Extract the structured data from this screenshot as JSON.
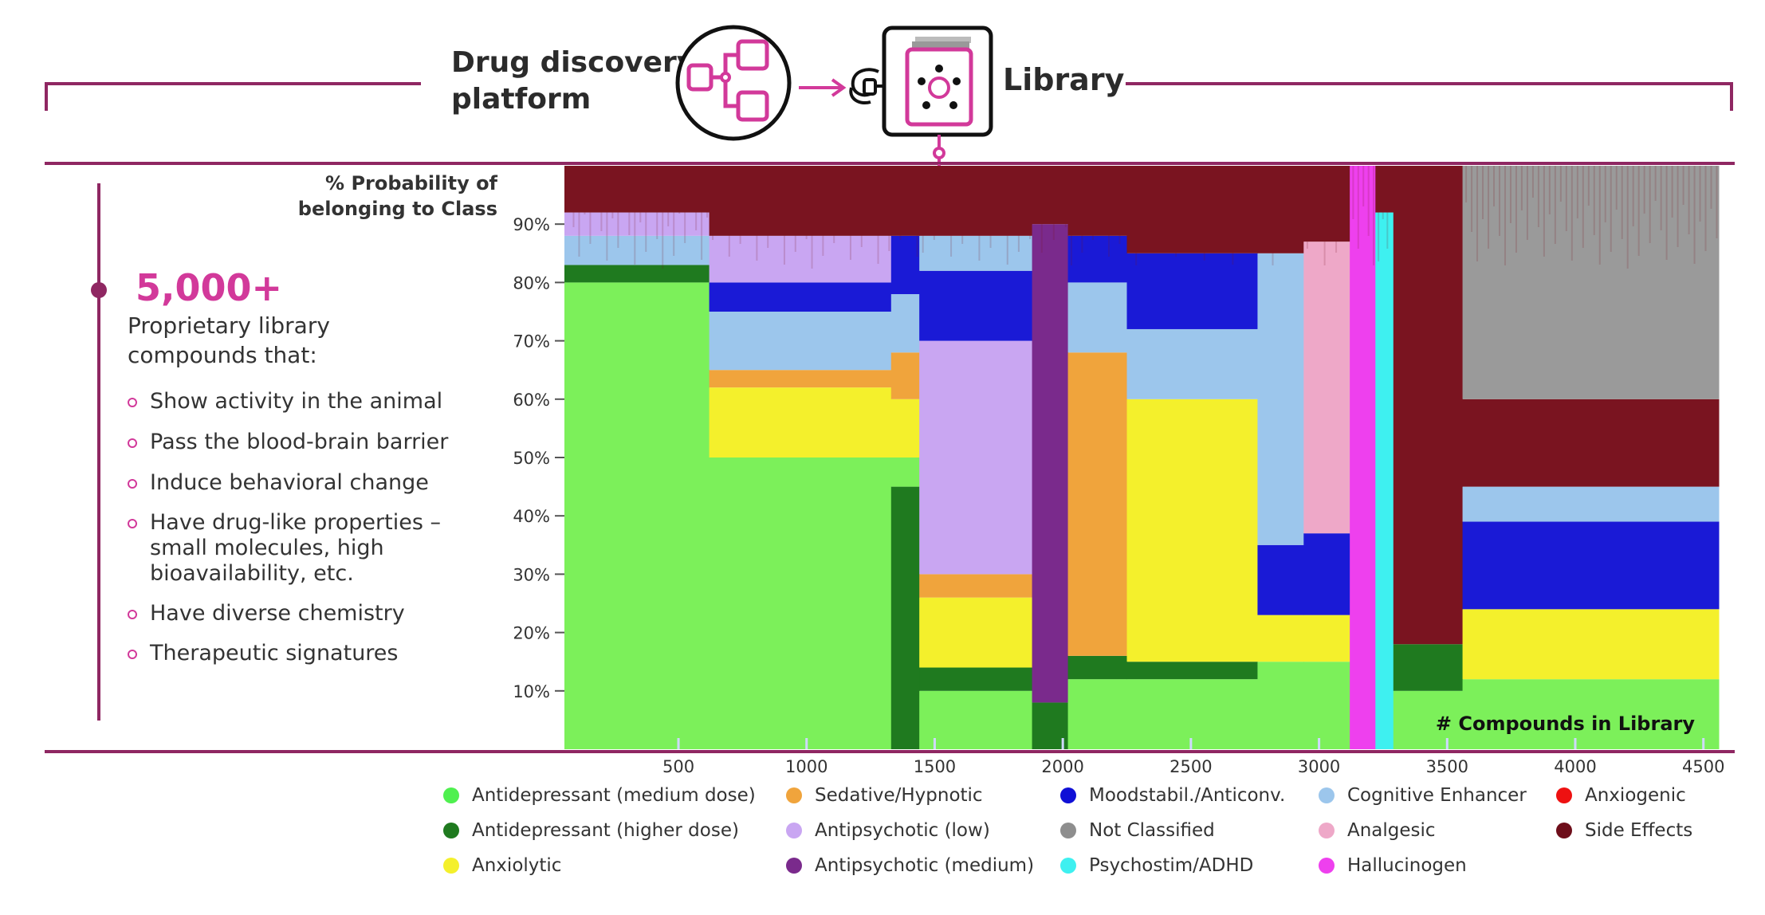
{
  "header": {
    "platform_title_line1": "Drug discovery",
    "platform_title_line2": "platform",
    "library_title": "Library"
  },
  "summary": {
    "stat": "5,000+",
    "description_line1": "Proprietary library",
    "description_line2": "compounds that:",
    "bullets": [
      {
        "line1": "Show activity in the animal"
      },
      {
        "line1": "Pass the blood-brain barrier"
      },
      {
        "line1": "Induce behavioral change"
      },
      {
        "line1": "Have drug-like properties –",
        "line2": "small molecules, high",
        "line3": "bioavailability, etc."
      },
      {
        "line1": "Have diverse chemistry"
      },
      {
        "line1": "Therapeutic signatures"
      }
    ]
  },
  "chart_data": {
    "type": "area",
    "ylabel_line1": "% Probability of",
    "ylabel_line2": "belonging to Class",
    "xlabel": "# Compounds in Library",
    "y_ticks": [
      "10%",
      "20%",
      "30%",
      "40%",
      "50%",
      "60%",
      "70%",
      "80%",
      "90%"
    ],
    "x_ticks": [
      "500",
      "1000",
      "1500",
      "2000",
      "2500",
      "3000",
      "3500",
      "4000",
      "4500"
    ],
    "xlim": [
      55,
      4560
    ],
    "ylim": [
      0,
      100
    ],
    "series": [
      {
        "name": "Antidepressant (medium dose)",
        "color": "#7cf05a"
      },
      {
        "name": "Antidepressant (higher dose)",
        "color": "#1f7a1f"
      },
      {
        "name": "Anxiolytic",
        "color": "#f4f02c"
      },
      {
        "name": "Sedative/Hypnotic",
        "color": "#f0a43c"
      },
      {
        "name": "Antipsychotic (low)",
        "color": "#c9a6f2"
      },
      {
        "name": "Antipsychotic (medium)",
        "color": "#7a2a8c"
      },
      {
        "name": "Moodstabil./Anticonv.",
        "color": "#1a1ad6"
      },
      {
        "name": "Not Classified",
        "color": "#9a9a9a"
      },
      {
        "name": "Psychostim/ADHD",
        "color": "#3ef0f0"
      },
      {
        "name": "Cognitive Enhancer",
        "color": "#9cc6ec"
      },
      {
        "name": "Analgesic",
        "color": "#eea8c8"
      },
      {
        "name": "Hallucinogen",
        "color": "#ee40ee"
      },
      {
        "name": "Anxiogenic",
        "color": "#ee2222"
      },
      {
        "name": "Side Effects",
        "color": "#7a1420"
      }
    ],
    "segments": [
      {
        "x": [
          55,
          620
        ],
        "stack": {
          "Antidepressant (medium dose)": 80,
          "Antidepressant (higher dose)": 3,
          "Cognitive Enhancer": 5,
          "Antipsychotic (low)": 4,
          "Side Effects": 8
        }
      },
      {
        "x": [
          620,
          1330
        ],
        "stack": {
          "Antidepressant (medium dose)": 50,
          "Anxiolytic": 12,
          "Sedative/Hypnotic": 3,
          "Cognitive Enhancer": 10,
          "Moodstabil./Anticonv.": 5,
          "Antipsychotic (low)": 8,
          "Side Effects": 12
        }
      },
      {
        "x": [
          1330,
          1440
        ],
        "stack": {
          "Antidepressant (higher dose)": 45,
          "Antidepressant (medium dose)": 5,
          "Anxiolytic": 10,
          "Sedative/Hypnotic": 8,
          "Cognitive Enhancer": 10,
          "Moodstabil./Anticonv.": 10,
          "Side Effects": 12
        }
      },
      {
        "x": [
          1440,
          1880
        ],
        "stack": {
          "Antidepressant (medium dose)": 10,
          "Antidepressant (higher dose)": 4,
          "Anxiolytic": 12,
          "Sedative/Hypnotic": 4,
          "Antipsychotic (low)": 40,
          "Moodstabil./Anticonv.": 12,
          "Cognitive Enhancer": 6,
          "Side Effects": 12
        }
      },
      {
        "x": [
          1880,
          2020
        ],
        "stack": {
          "Antidepressant (higher dose)": 8,
          "Antipsychotic (medium)": 82,
          "Side Effects": 10
        }
      },
      {
        "x": [
          2020,
          2250
        ],
        "stack": {
          "Antidepressant (medium dose)": 12,
          "Antidepressant (higher dose)": 4,
          "Sedative/Hypnotic": 52,
          "Cognitive Enhancer": 12,
          "Moodstabil./Anticonv.": 8,
          "Side Effects": 12
        }
      },
      {
        "x": [
          2250,
          2760
        ],
        "stack": {
          "Antidepressant (medium dose)": 12,
          "Antidepressant (higher dose)": 3,
          "Anxiolytic": 45,
          "Cognitive Enhancer": 12,
          "Moodstabil./Anticonv.": 13,
          "Side Effects": 15
        }
      },
      {
        "x": [
          2760,
          2940
        ],
        "stack": {
          "Antidepressant (medium dose)": 15,
          "Anxiolytic": 8,
          "Moodstabil./Anticonv.": 12,
          "Cognitive Enhancer": 50,
          "Side Effects": 15
        }
      },
      {
        "x": [
          2940,
          3120
        ],
        "stack": {
          "Antidepressant (medium dose)": 15,
          "Anxiolytic": 8,
          "Moodstabil./Anticonv.": 14,
          "Analgesic": 50,
          "Side Effects": 13
        }
      },
      {
        "x": [
          3120,
          3220
        ],
        "stack": {
          "Hallucinogen": 100
        }
      },
      {
        "x": [
          3220,
          3290
        ],
        "stack": {
          "Psychostim/ADHD": 92,
          "Side Effects": 8
        }
      },
      {
        "x": [
          3290,
          3560
        ],
        "stack": {
          "Antidepressant (medium dose)": 10,
          "Antidepressant (higher dose)": 8,
          "Side Effects": 82
        }
      },
      {
        "x": [
          3560,
          4560
        ],
        "stack": {
          "Antidepressant (medium dose)": 12,
          "Anxiolytic": 12,
          "Moodstabil./Anticonv.": 15,
          "Cognitive Enhancer": 6,
          "Side Effects": 15,
          "Not Classified": 40
        }
      }
    ]
  },
  "legend": [
    {
      "label": "Antidepressant (medium dose)",
      "color": "#4ff04f"
    },
    {
      "label": "Antidepressant (higher dose)",
      "color": "#1f7a1f"
    },
    {
      "label": "Anxiolytic",
      "color": "#f4f02c"
    },
    {
      "label": "Sedative/Hypnotic",
      "color": "#f0a43c"
    },
    {
      "label": "Antipsychotic (low)",
      "color": "#c9a6f2"
    },
    {
      "label": "Antipsychotic (medium)",
      "color": "#7a2a8c"
    },
    {
      "label": "Moodstabil./Anticonv.",
      "color": "#1010d6"
    },
    {
      "label": "Not Classified",
      "color": "#8e8e8e"
    },
    {
      "label": "Psychostim/ADHD",
      "color": "#3ef0f0"
    },
    {
      "label": "Cognitive Enhancer",
      "color": "#9cc6ec"
    },
    {
      "label": "Analgesic",
      "color": "#eea8c8"
    },
    {
      "label": "Hallucinogen",
      "color": "#ee40ee"
    },
    {
      "label": "Anxiogenic",
      "color": "#ee1111"
    },
    {
      "label": "Side Effects",
      "color": "#6e0e1a"
    }
  ],
  "colors": {
    "accent": "#8f2762",
    "highlight": "#d2399a"
  }
}
